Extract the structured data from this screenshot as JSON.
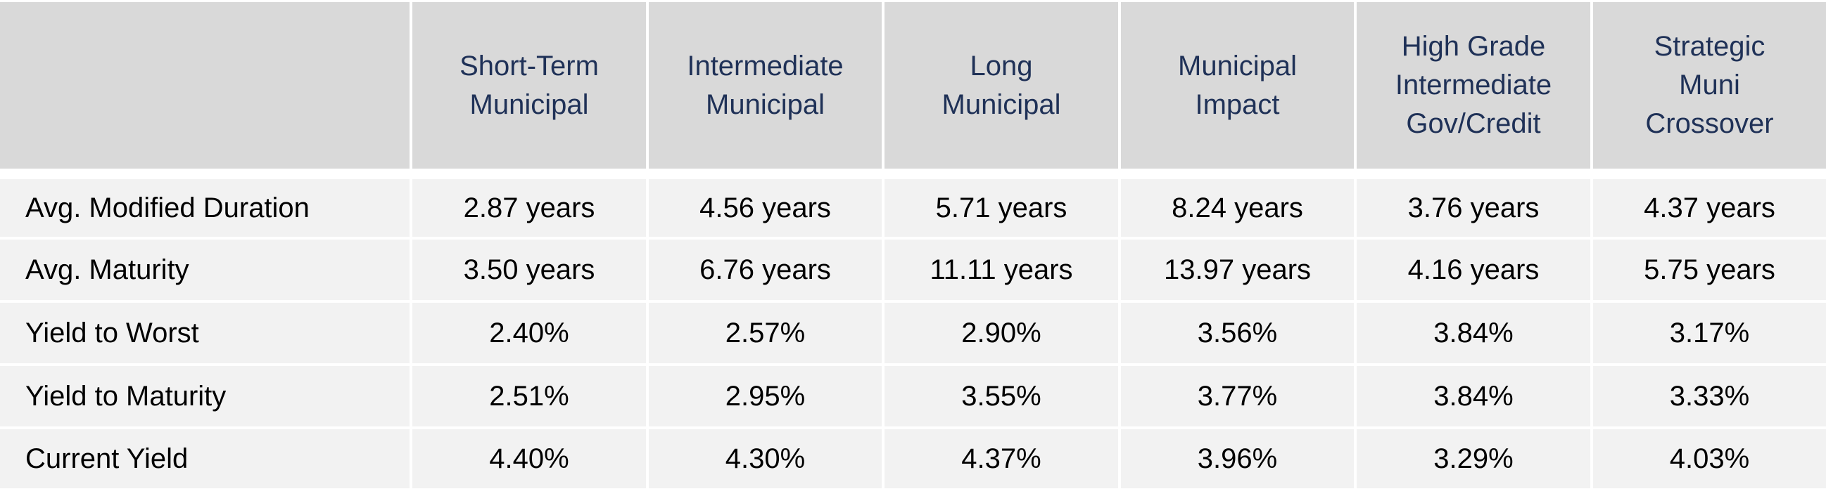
{
  "table": {
    "corner": "",
    "columns": [
      [
        "Short-Term",
        "Municipal"
      ],
      [
        "Intermediate",
        "Municipal"
      ],
      [
        "Long",
        "Municipal"
      ],
      [
        "Municipal",
        "Impact"
      ],
      [
        "High Grade",
        "Intermediate",
        "Gov/Credit"
      ],
      [
        "Strategic",
        "Muni",
        "Crossover"
      ]
    ],
    "rows": [
      {
        "label": "Avg. Modified Duration",
        "values": [
          "2.87 years",
          "4.56 years",
          "5.71 years",
          "8.24 years",
          "3.76 years",
          "4.37 years"
        ]
      },
      {
        "label": "Avg. Maturity",
        "values": [
          "3.50 years",
          "6.76 years",
          "11.11 years",
          "13.97 years",
          "4.16 years",
          "5.75 years"
        ]
      },
      {
        "label": "Yield to Worst",
        "values": [
          "2.40%",
          "2.57%",
          "2.90%",
          "3.56%",
          "3.84%",
          "3.17%"
        ]
      },
      {
        "label": "Yield to Maturity",
        "values": [
          "2.51%",
          "2.95%",
          "3.55%",
          "3.77%",
          "3.84%",
          "3.33%"
        ]
      },
      {
        "label": "Current Yield",
        "values": [
          "4.40%",
          "4.30%",
          "4.37%",
          "3.96%",
          "3.29%",
          "4.03%"
        ]
      }
    ],
    "colors": {
      "header_bg": "#d9d9d9",
      "header_text": "#1f3157",
      "body_bg": "#f2f2f2",
      "body_text": "#000000"
    }
  }
}
